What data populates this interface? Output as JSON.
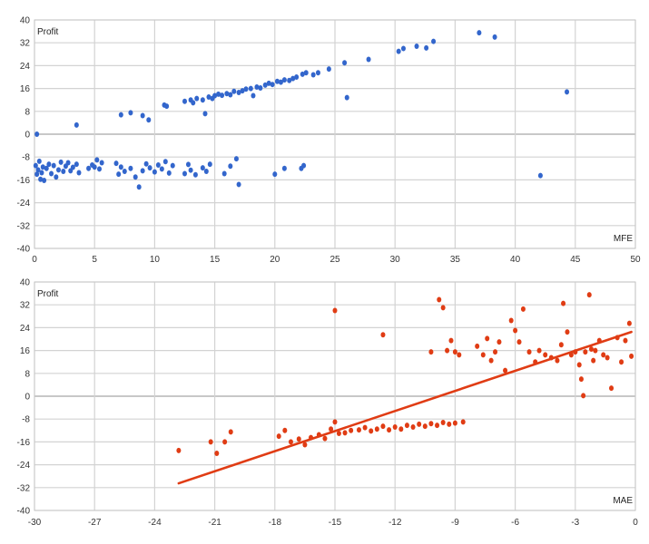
{
  "chart_data": [
    {
      "type": "scatter",
      "ylabel": "Profit",
      "xlabel": "MFE",
      "xlim": [
        0,
        50
      ],
      "ylim": [
        -40,
        40
      ],
      "x_ticks": [
        0,
        5,
        10,
        15,
        20,
        25,
        30,
        35,
        40,
        45,
        50
      ],
      "y_ticks": [
        40,
        32,
        24,
        16,
        8,
        0,
        -8,
        -16,
        -24,
        -32,
        -40
      ],
      "grid": true,
      "color": "#3366cc",
      "points": [
        [
          0.2,
          0
        ],
        [
          3.5,
          3.2
        ],
        [
          7.2,
          6.8
        ],
        [
          8,
          7.5
        ],
        [
          9,
          6.5
        ],
        [
          9.5,
          5
        ],
        [
          10.8,
          10.2
        ],
        [
          11,
          9.8
        ],
        [
          12.5,
          11.5
        ],
        [
          13,
          12
        ],
        [
          13.2,
          11
        ],
        [
          13.5,
          12.5
        ],
        [
          14,
          12
        ],
        [
          14.2,
          7.2
        ],
        [
          14.5,
          13
        ],
        [
          14.8,
          12.5
        ],
        [
          15,
          13.5
        ],
        [
          15.3,
          14
        ],
        [
          15.6,
          13.6
        ],
        [
          16,
          14.2
        ],
        [
          16.3,
          13.8
        ],
        [
          16.6,
          15
        ],
        [
          17,
          14.6
        ],
        [
          17.3,
          15.2
        ],
        [
          17.6,
          15.8
        ],
        [
          18,
          16
        ],
        [
          18.2,
          13.5
        ],
        [
          18.5,
          16.5
        ],
        [
          18.8,
          16.2
        ],
        [
          19.2,
          17.2
        ],
        [
          19.5,
          17.8
        ],
        [
          19.8,
          17.4
        ],
        [
          20.2,
          18.5
        ],
        [
          20.5,
          18.2
        ],
        [
          20.8,
          19
        ],
        [
          21.2,
          18.8
        ],
        [
          21.5,
          19.5
        ],
        [
          21.8,
          20
        ],
        [
          22.3,
          21
        ],
        [
          22.6,
          21.5
        ],
        [
          23.2,
          20.8
        ],
        [
          23.6,
          21.5
        ],
        [
          24.5,
          22.8
        ],
        [
          25.8,
          25
        ],
        [
          26,
          12.8
        ],
        [
          27.8,
          26.2
        ],
        [
          30.3,
          29
        ],
        [
          30.7,
          30
        ],
        [
          31.8,
          30.8
        ],
        [
          32.6,
          30.2
        ],
        [
          33.2,
          32.5
        ],
        [
          37,
          35.5
        ],
        [
          38.3,
          34
        ],
        [
          44.3,
          14.8
        ],
        [
          42.1,
          -14.5
        ],
        [
          0.1,
          -11
        ],
        [
          0.2,
          -14
        ],
        [
          0.3,
          -12.5
        ],
        [
          0.4,
          -9.5
        ],
        [
          0.5,
          -15.8
        ],
        [
          0.6,
          -13.5
        ],
        [
          0.7,
          -11.5
        ],
        [
          0.8,
          -16.2
        ],
        [
          1,
          -12
        ],
        [
          1.2,
          -10.5
        ],
        [
          1.4,
          -13.8
        ],
        [
          1.6,
          -11
        ],
        [
          1.8,
          -15
        ],
        [
          2,
          -12.5
        ],
        [
          2.2,
          -9.8
        ],
        [
          2.4,
          -13
        ],
        [
          2.6,
          -11.2
        ],
        [
          2.8,
          -10
        ],
        [
          3,
          -12.8
        ],
        [
          3.2,
          -11.6
        ],
        [
          3.5,
          -10.5
        ],
        [
          3.7,
          -13.5
        ],
        [
          4.5,
          -12
        ],
        [
          4.8,
          -10.8
        ],
        [
          5,
          -11.5
        ],
        [
          5.2,
          -9
        ],
        [
          5.4,
          -12.2
        ],
        [
          5.6,
          -10
        ],
        [
          6.8,
          -10.2
        ],
        [
          7,
          -14
        ],
        [
          7.2,
          -11.5
        ],
        [
          7.5,
          -13
        ],
        [
          8,
          -12
        ],
        [
          8.4,
          -15
        ],
        [
          8.7,
          -18.5
        ],
        [
          9,
          -12.8
        ],
        [
          9.3,
          -10.4
        ],
        [
          9.6,
          -11.8
        ],
        [
          10,
          -13.2
        ],
        [
          10.3,
          -10.8
        ],
        [
          10.6,
          -12.2
        ],
        [
          10.9,
          -9.6
        ],
        [
          11.2,
          -13.6
        ],
        [
          11.5,
          -11
        ],
        [
          12.5,
          -13.8
        ],
        [
          12.8,
          -10.6
        ],
        [
          13,
          -12.6
        ],
        [
          13.4,
          -14.2
        ],
        [
          14,
          -11.8
        ],
        [
          14.3,
          -13
        ],
        [
          14.6,
          -10.5
        ],
        [
          15.8,
          -13.8
        ],
        [
          16.3,
          -11.2
        ],
        [
          16.8,
          -8.6
        ],
        [
          17,
          -17.6
        ],
        [
          20,
          -14
        ],
        [
          20.8,
          -12
        ],
        [
          22.2,
          -12
        ],
        [
          22.4,
          -11
        ]
      ]
    },
    {
      "type": "scatter",
      "ylabel": "Profit",
      "xlabel": "MAE",
      "xlim": [
        -30,
        0
      ],
      "ylim": [
        -40,
        40
      ],
      "x_ticks": [
        -30,
        -27,
        -24,
        -21,
        -18,
        -15,
        -12,
        -9,
        -6,
        -3,
        0
      ],
      "y_ticks": [
        40,
        32,
        24,
        16,
        8,
        0,
        -8,
        -16,
        -24,
        -32,
        -40
      ],
      "grid": true,
      "color": "#e03c14",
      "trendline": {
        "x": [
          -22.8,
          -0.2
        ],
        "y": [
          -30.5,
          22.5
        ]
      },
      "points": [
        [
          -22.8,
          -19
        ],
        [
          -21.2,
          -16
        ],
        [
          -20.9,
          -20
        ],
        [
          -20.5,
          -16
        ],
        [
          -20.2,
          -12.5
        ],
        [
          -17.8,
          -14
        ],
        [
          -17.5,
          -12
        ],
        [
          -17.2,
          -16
        ],
        [
          -16.8,
          -15
        ],
        [
          -16.5,
          -17
        ],
        [
          -16.2,
          -14.5
        ],
        [
          -15.8,
          -13.5
        ],
        [
          -15.5,
          -14.8
        ],
        [
          -15.2,
          -11.5
        ],
        [
          -14.8,
          -13
        ],
        [
          -14.5,
          -12.8
        ],
        [
          -14.2,
          -12
        ],
        [
          -13.8,
          -11.8
        ],
        [
          -13.5,
          -11
        ],
        [
          -13.2,
          -12.2
        ],
        [
          -12.9,
          -11.5
        ],
        [
          -12.6,
          -10.5
        ],
        [
          -12.3,
          -11.8
        ],
        [
          -12,
          -10.8
        ],
        [
          -11.7,
          -11.5
        ],
        [
          -11.4,
          -10.2
        ],
        [
          -11.1,
          -10.8
        ],
        [
          -10.8,
          -9.8
        ],
        [
          -10.5,
          -10.5
        ],
        [
          -10.2,
          -9.6
        ],
        [
          -9.9,
          -10.2
        ],
        [
          -9.6,
          -9.2
        ],
        [
          -9.3,
          -9.8
        ],
        [
          -9,
          -9.4
        ],
        [
          -8.6,
          -9
        ],
        [
          -15,
          30
        ],
        [
          -15,
          -9
        ],
        [
          -12.6,
          21.5
        ],
        [
          -10.2,
          15.5
        ],
        [
          -9.8,
          33.8
        ],
        [
          -9.6,
          31
        ],
        [
          -9.4,
          16
        ],
        [
          -9.2,
          19.5
        ],
        [
          -9,
          15.5
        ],
        [
          -8.8,
          14.5
        ],
        [
          -7.9,
          17.5
        ],
        [
          -7.6,
          14.5
        ],
        [
          -7.4,
          20.2
        ],
        [
          -7.2,
          12.5
        ],
        [
          -7,
          15.5
        ],
        [
          -6.8,
          19
        ],
        [
          -6.5,
          9
        ],
        [
          -6.2,
          26.5
        ],
        [
          -6,
          23
        ],
        [
          -5.8,
          19
        ],
        [
          -5.6,
          30.5
        ],
        [
          -5.3,
          15.5
        ],
        [
          -5,
          12
        ],
        [
          -4.8,
          16
        ],
        [
          -4.5,
          14.5
        ],
        [
          -4.2,
          13.5
        ],
        [
          -3.9,
          12.5
        ],
        [
          -3.7,
          18
        ],
        [
          -3.6,
          32.5
        ],
        [
          -3.4,
          22.5
        ],
        [
          -3.2,
          14.5
        ],
        [
          -3,
          15.5
        ],
        [
          -2.8,
          11
        ],
        [
          -2.7,
          6
        ],
        [
          -2.6,
          0.2
        ],
        [
          -2.5,
          15.5
        ],
        [
          -2.3,
          35.5
        ],
        [
          -2.2,
          16.5
        ],
        [
          -2.1,
          12.5
        ],
        [
          -2,
          16
        ],
        [
          -1.8,
          19.5
        ],
        [
          -1.6,
          14.5
        ],
        [
          -1.4,
          13.5
        ],
        [
          -1.2,
          2.8
        ],
        [
          -0.9,
          20.5
        ],
        [
          -0.7,
          12
        ],
        [
          -0.5,
          19.5
        ],
        [
          -0.3,
          25.5
        ],
        [
          -0.2,
          14
        ]
      ]
    }
  ]
}
